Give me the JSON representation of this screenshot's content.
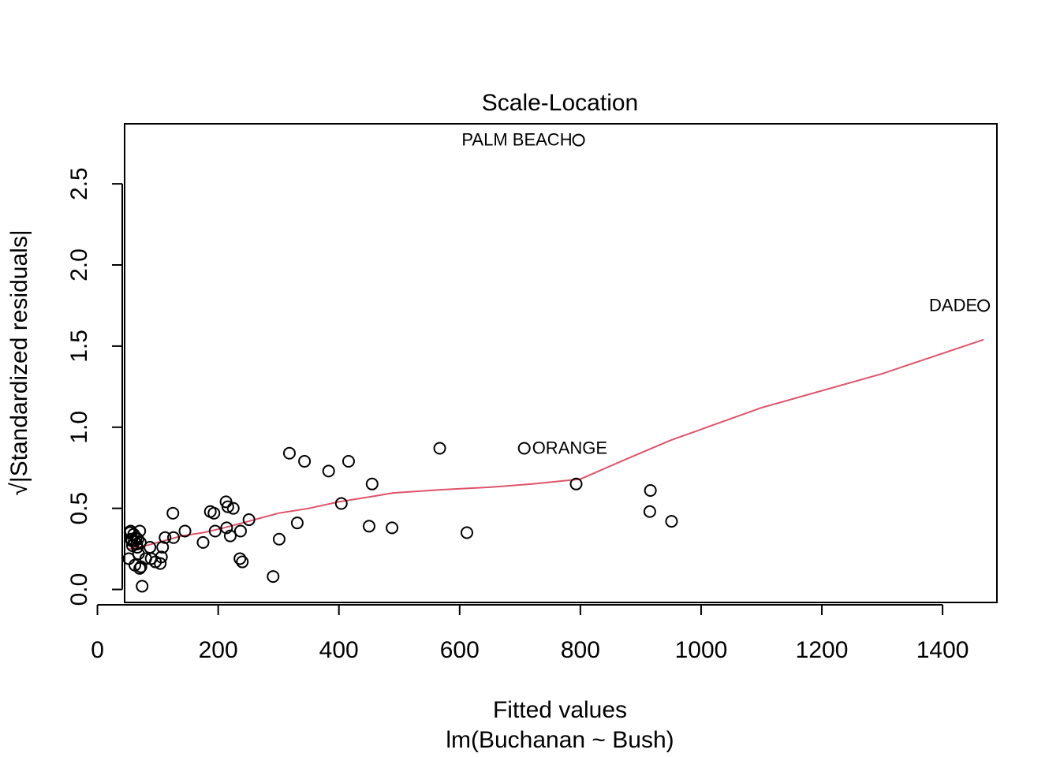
{
  "chart_data": {
    "type": "scatter",
    "title": "Scale-Location",
    "xlabel": "Fitted values",
    "xlabel_sub": "lm(Buchanan ~ Bush)",
    "ylabel": "√|Standardized residuals|",
    "xlim": [
      45,
      1490
    ],
    "ylim": [
      -0.08,
      2.87
    ],
    "xticks": [
      0,
      200,
      400,
      600,
      800,
      1000,
      1200,
      1400
    ],
    "yticks": [
      0.0,
      0.5,
      1.0,
      1.5,
      2.0,
      2.5
    ],
    "xtick_labels": [
      "0",
      "200",
      "400",
      "600",
      "800",
      "1000",
      "1200",
      "1400"
    ],
    "ytick_labels": [
      "0.0",
      "0.5",
      "1.0",
      "1.5",
      "2.0",
      "2.5"
    ],
    "grid": false,
    "legend": "none",
    "colors": {
      "points": "#000000",
      "smooth": "#DF536B"
    },
    "points": [
      [
        797,
        2.77
      ],
      [
        1468,
        1.75
      ],
      [
        707,
        0.87
      ],
      [
        318,
        0.84
      ],
      [
        343,
        0.79
      ],
      [
        416,
        0.79
      ],
      [
        567,
        0.87
      ],
      [
        383,
        0.73
      ],
      [
        455,
        0.65
      ],
      [
        793,
        0.65
      ],
      [
        916,
        0.61
      ],
      [
        915,
        0.48
      ],
      [
        951,
        0.42
      ],
      [
        612,
        0.35
      ],
      [
        488,
        0.38
      ],
      [
        450,
        0.39
      ],
      [
        404,
        0.53
      ],
      [
        331,
        0.41
      ],
      [
        301,
        0.31
      ],
      [
        291,
        0.08
      ],
      [
        251,
        0.43
      ],
      [
        240,
        0.17
      ],
      [
        236,
        0.19
      ],
      [
        237,
        0.36
      ],
      [
        225,
        0.5
      ],
      [
        220,
        0.33
      ],
      [
        214,
        0.38
      ],
      [
        213,
        0.54
      ],
      [
        216,
        0.51
      ],
      [
        195,
        0.36
      ],
      [
        193,
        0.47
      ],
      [
        187,
        0.48
      ],
      [
        175,
        0.29
      ],
      [
        145,
        0.36
      ],
      [
        126,
        0.32
      ],
      [
        125,
        0.47
      ],
      [
        112,
        0.32
      ],
      [
        108,
        0.26
      ],
      [
        106,
        0.2
      ],
      [
        104,
        0.16
      ],
      [
        96,
        0.17
      ],
      [
        89,
        0.19
      ],
      [
        87,
        0.26
      ],
      [
        80,
        0.19
      ],
      [
        74,
        0.02
      ],
      [
        72,
        0.14
      ],
      [
        70,
        0.13
      ],
      [
        71,
        0.29
      ],
      [
        70,
        0.36
      ],
      [
        68,
        0.22
      ],
      [
        67,
        0.31
      ],
      [
        66,
        0.26
      ],
      [
        64,
        0.32
      ],
      [
        62,
        0.15
      ],
      [
        61,
        0.3
      ],
      [
        60,
        0.34
      ],
      [
        58,
        0.27
      ],
      [
        57,
        0.3
      ],
      [
        56,
        0.31
      ],
      [
        55,
        0.36
      ],
      [
        54,
        0.35
      ],
      [
        52,
        0.19
      ],
      [
        65,
        0.28
      ]
    ],
    "labeled_points": [
      {
        "label": "PALM BEACH",
        "x": 797,
        "y": 2.77
      },
      {
        "label": "DADE",
        "x": 1468,
        "y": 1.75
      },
      {
        "label": "ORANGE",
        "x": 707,
        "y": 0.87
      }
    ],
    "smooth_line": [
      [
        52,
        0.25
      ],
      [
        80,
        0.27
      ],
      [
        110,
        0.3
      ],
      [
        140,
        0.33
      ],
      [
        175,
        0.35
      ],
      [
        210,
        0.38
      ],
      [
        250,
        0.42
      ],
      [
        300,
        0.47
      ],
      [
        350,
        0.5
      ],
      [
        400,
        0.54
      ],
      [
        450,
        0.57
      ],
      [
        490,
        0.595
      ],
      [
        570,
        0.615
      ],
      [
        650,
        0.63
      ],
      [
        720,
        0.65
      ],
      [
        800,
        0.68
      ],
      [
        880,
        0.81
      ],
      [
        950,
        0.92
      ],
      [
        1100,
        1.12
      ],
      [
        1300,
        1.33
      ],
      [
        1468,
        1.54
      ]
    ]
  }
}
